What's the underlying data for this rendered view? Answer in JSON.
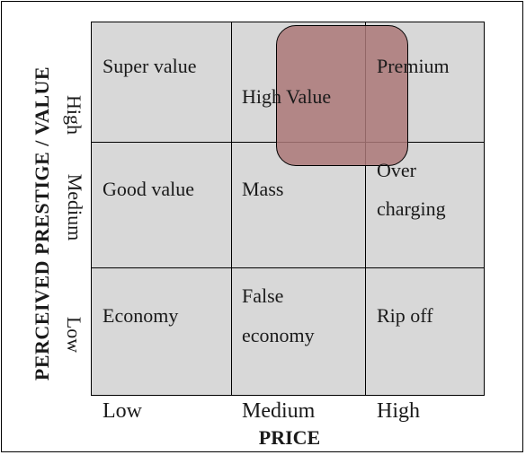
{
  "y_axis": {
    "label": "PERCEIVED PRESTIGE / VALUE",
    "ticks": [
      "High",
      "Medium",
      "Low"
    ]
  },
  "x_axis": {
    "label": "PRICE",
    "ticks": [
      "Low",
      "Medium",
      "High"
    ]
  },
  "cells": {
    "high_low": "Super value",
    "high_medium": "High Value",
    "high_high": "Premium",
    "medium_low": "Good value",
    "medium_medium": "Mass",
    "medium_high_line1": "Over",
    "medium_high_line2": "charging",
    "low_low": "Economy",
    "low_medium_line1": "False",
    "low_medium_line2": "economy",
    "low_high": "Rip off"
  },
  "colors": {
    "grid_fill": "#d8d8d8",
    "highlight_fill": "#ac7878"
  }
}
